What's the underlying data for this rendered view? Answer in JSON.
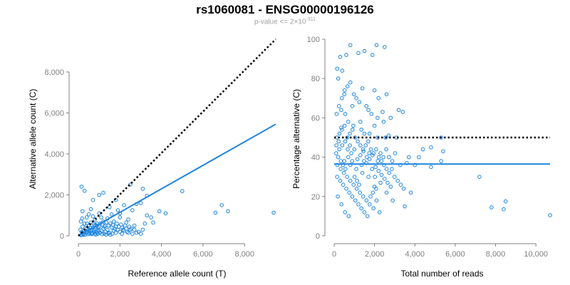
{
  "header": {
    "title": "rs1060081 - ENSG00000196126",
    "subtitle_prefix": "p-value <= 2×10",
    "subtitle_exponent": "-311"
  },
  "colors": {
    "points": "#1f85de",
    "fit": "#1f85de",
    "reference": "#000000",
    "axis": "#808080"
  },
  "chart_data": [
    {
      "type": "scatter",
      "title": "",
      "xlabel": "Reference allele count (T)",
      "ylabel": "Alternative allele count (C)",
      "xlim": [
        0,
        9500
      ],
      "ylim": [
        0,
        9600
      ],
      "xticks": [
        0,
        2000,
        4000,
        6000,
        8000
      ],
      "xtick_labels": [
        "0",
        "2,000",
        "4,000",
        "6,000",
        "8,000"
      ],
      "yticks": [
        0,
        2000,
        4000,
        6000,
        8000
      ],
      "ytick_labels": [
        "0",
        "2,000",
        "4,000",
        "6,000",
        "8,000"
      ],
      "fit_line": {
        "from": [
          0,
          0
        ],
        "to": [
          9500,
          5450
        ],
        "style": "solid"
      },
      "reference_line": {
        "from": [
          0,
          0
        ],
        "to": [
          9500,
          9600
        ],
        "style": "dotted"
      },
      "points": [
        [
          5000,
          2180
        ],
        [
          6600,
          1130
        ],
        [
          6900,
          1500
        ],
        [
          7200,
          1200
        ],
        [
          9400,
          1130
        ],
        [
          2500,
          2500
        ],
        [
          3100,
          2300
        ],
        [
          3300,
          1950
        ],
        [
          150,
          2400
        ],
        [
          300,
          2200
        ],
        [
          1000,
          2000
        ],
        [
          1200,
          2100
        ],
        [
          700,
          1750
        ],
        [
          1800,
          1750
        ],
        [
          2200,
          1500
        ],
        [
          2800,
          1550
        ],
        [
          3000,
          1600
        ],
        [
          2600,
          1250
        ],
        [
          3300,
          1000
        ],
        [
          3200,
          600
        ],
        [
          2700,
          500
        ],
        [
          3900,
          1200
        ],
        [
          4200,
          1100
        ],
        [
          1500,
          1400
        ],
        [
          600,
          1300
        ],
        [
          200,
          1200
        ],
        [
          500,
          1050
        ],
        [
          2000,
          900
        ],
        [
          2400,
          800
        ],
        [
          1100,
          900
        ],
        [
          800,
          800
        ],
        [
          1400,
          850
        ],
        [
          1700,
          700
        ],
        [
          900,
          600
        ],
        [
          1300,
          500
        ],
        [
          2100,
          400
        ],
        [
          1000,
          1100
        ],
        [
          700,
          950
        ],
        [
          1600,
          1050
        ],
        [
          1900,
          1250
        ],
        [
          400,
          900
        ],
        [
          1200,
          700
        ],
        [
          2300,
          650
        ],
        [
          1800,
          450
        ],
        [
          2500,
          300
        ],
        [
          2900,
          200
        ],
        [
          3500,
          900
        ],
        [
          3100,
          300
        ],
        [
          3600,
          650
        ],
        [
          2000,
          1100
        ],
        [
          150,
          50
        ],
        [
          250,
          100
        ],
        [
          350,
          150
        ],
        [
          450,
          80
        ],
        [
          550,
          220
        ],
        [
          650,
          120
        ],
        [
          750,
          300
        ],
        [
          850,
          180
        ],
        [
          950,
          400
        ],
        [
          100,
          300
        ],
        [
          200,
          450
        ],
        [
          300,
          600
        ],
        [
          400,
          350
        ],
        [
          500,
          500
        ],
        [
          600,
          650
        ],
        [
          700,
          400
        ],
        [
          800,
          550
        ],
        [
          900,
          300
        ],
        [
          1000,
          450
        ],
        [
          1100,
          250
        ],
        [
          1200,
          350
        ],
        [
          1300,
          200
        ],
        [
          1400,
          300
        ],
        [
          1500,
          150
        ],
        [
          1600,
          400
        ],
        [
          1700,
          250
        ],
        [
          1800,
          150
        ],
        [
          1900,
          300
        ],
        [
          2000,
          200
        ],
        [
          2100,
          100
        ],
        [
          2200,
          250
        ],
        [
          2300,
          350
        ],
        [
          2400,
          150
        ],
        [
          2600,
          100
        ],
        [
          2700,
          300
        ],
        [
          2800,
          150
        ],
        [
          3000,
          100
        ],
        [
          120,
          700
        ],
        [
          180,
          850
        ],
        [
          220,
          150
        ],
        [
          280,
          250
        ],
        [
          320,
          50
        ],
        [
          380,
          200
        ],
        [
          420,
          600
        ],
        [
          480,
          300
        ],
        [
          520,
          100
        ],
        [
          580,
          400
        ],
        [
          620,
          250
        ],
        [
          680,
          150
        ],
        [
          720,
          600
        ],
        [
          780,
          100
        ],
        [
          820,
          350
        ],
        [
          880,
          500
        ],
        [
          920,
          150
        ],
        [
          980,
          250
        ],
        [
          1050,
          600
        ],
        [
          1150,
          550
        ],
        [
          1250,
          450
        ],
        [
          1350,
          650
        ],
        [
          1450,
          500
        ],
        [
          1550,
          600
        ],
        [
          1650,
          550
        ],
        [
          1750,
          350
        ],
        [
          1850,
          600
        ],
        [
          1950,
          450
        ],
        [
          2050,
          550
        ],
        [
          2150,
          300
        ],
        [
          2250,
          500
        ],
        [
          2350,
          200
        ],
        [
          2450,
          450
        ],
        [
          2550,
          350
        ],
        [
          130,
          30
        ],
        [
          160,
          180
        ],
        [
          240,
          60
        ],
        [
          340,
          380
        ],
        [
          440,
          160
        ],
        [
          540,
          300
        ],
        [
          640,
          80
        ],
        [
          740,
          200
        ],
        [
          840,
          60
        ],
        [
          940,
          100
        ],
        [
          1040,
          150
        ],
        [
          1140,
          80
        ],
        [
          1240,
          100
        ],
        [
          1340,
          60
        ],
        [
          1440,
          120
        ],
        [
          1540,
          60
        ],
        [
          1640,
          100
        ]
      ]
    },
    {
      "type": "scatter",
      "title": "",
      "xlabel": "Total number of reads",
      "ylabel": "Percentage alternative (C)",
      "xlim": [
        0,
        10700
      ],
      "ylim": [
        0,
        100
      ],
      "xticks": [
        0,
        2000,
        4000,
        6000,
        8000,
        10000
      ],
      "xtick_labels": [
        "0",
        "2,000",
        "4,000",
        "6,000",
        "8,000",
        "10,000"
      ],
      "yticks": [
        0,
        20,
        40,
        60,
        80,
        100
      ],
      "ytick_labels": [
        "0",
        "20",
        "40",
        "60",
        "80",
        "100"
      ],
      "fit_line": {
        "from": [
          0,
          36.5
        ],
        "to": [
          10700,
          36.5
        ],
        "style": "solid"
      },
      "reference_line": {
        "from": [
          0,
          50
        ],
        "to": [
          10700,
          50
        ],
        "style": "dotted"
      },
      "points": [
        [
          800,
          97
        ],
        [
          2100,
          97
        ],
        [
          2500,
          96
        ],
        [
          1900,
          92
        ],
        [
          600,
          92
        ],
        [
          300,
          91
        ],
        [
          1200,
          93
        ],
        [
          1500,
          94
        ],
        [
          150,
          85
        ],
        [
          400,
          84
        ],
        [
          800,
          78
        ],
        [
          1400,
          75
        ],
        [
          2000,
          74
        ],
        [
          2200,
          70
        ],
        [
          2600,
          72
        ],
        [
          1100,
          70
        ],
        [
          500,
          72
        ],
        [
          200,
          80
        ],
        [
          900,
          66
        ],
        [
          1700,
          64
        ],
        [
          2400,
          63
        ],
        [
          3200,
          64
        ],
        [
          3400,
          63
        ],
        [
          2800,
          60
        ],
        [
          1300,
          58
        ],
        [
          700,
          58
        ],
        [
          350,
          55
        ],
        [
          2000,
          56
        ],
        [
          1500,
          52
        ],
        [
          2700,
          51
        ],
        [
          3100,
          50
        ],
        [
          5300,
          50
        ],
        [
          4800,
          45
        ],
        [
          5400,
          43
        ],
        [
          4200,
          40
        ],
        [
          4800,
          35
        ],
        [
          5300,
          38
        ],
        [
          7200,
          30
        ],
        [
          7800,
          14.5
        ],
        [
          8500,
          17.5
        ],
        [
          8400,
          13.5
        ],
        [
          10700,
          10.5
        ],
        [
          3600,
          37
        ],
        [
          3800,
          22
        ],
        [
          3500,
          15
        ],
        [
          2900,
          18
        ],
        [
          2600,
          22
        ],
        [
          2300,
          27
        ],
        [
          2000,
          25
        ],
        [
          1700,
          30
        ],
        [
          1400,
          32
        ],
        [
          1100,
          34
        ],
        [
          800,
          36
        ],
        [
          500,
          38
        ],
        [
          200,
          40
        ],
        [
          100,
          42
        ],
        [
          250,
          44
        ],
        [
          400,
          46
        ],
        [
          550,
          48
        ],
        [
          700,
          40
        ],
        [
          850,
          42
        ],
        [
          1000,
          44
        ],
        [
          1150,
          39
        ],
        [
          1300,
          41
        ],
        [
          1450,
          43
        ],
        [
          1600,
          37
        ],
        [
          1750,
          39
        ],
        [
          1900,
          41
        ],
        [
          2050,
          35
        ],
        [
          2200,
          33
        ],
        [
          2350,
          31
        ],
        [
          2500,
          29
        ],
        [
          2650,
          27
        ],
        [
          2800,
          25
        ],
        [
          150,
          30
        ],
        [
          300,
          28
        ],
        [
          450,
          26
        ],
        [
          600,
          24
        ],
        [
          750,
          22
        ],
        [
          900,
          20
        ],
        [
          1050,
          18
        ],
        [
          1200,
          16
        ],
        [
          1350,
          14
        ],
        [
          1500,
          12
        ],
        [
          1650,
          10
        ],
        [
          1800,
          20
        ],
        [
          1950,
          14
        ],
        [
          2100,
          18
        ],
        [
          2250,
          12
        ],
        [
          180,
          20
        ],
        [
          360,
          16
        ],
        [
          540,
          12
        ],
        [
          720,
          10
        ],
        [
          120,
          62
        ],
        [
          240,
          66
        ],
        [
          380,
          70
        ],
        [
          520,
          74
        ],
        [
          660,
          76
        ],
        [
          980,
          72
        ],
        [
          1250,
          68
        ],
        [
          1600,
          66
        ],
        [
          1850,
          62
        ],
        [
          2150,
          60
        ],
        [
          2450,
          58
        ],
        [
          130,
          50
        ],
        [
          260,
          52
        ],
        [
          390,
          54
        ],
        [
          520,
          56
        ],
        [
          650,
          50
        ],
        [
          780,
          52
        ],
        [
          910,
          54
        ],
        [
          1040,
          50
        ],
        [
          1170,
          48
        ],
        [
          1300,
          46
        ],
        [
          1430,
          44
        ],
        [
          1560,
          46
        ],
        [
          1690,
          48
        ],
        [
          1820,
          44
        ],
        [
          1950,
          42
        ],
        [
          2080,
          44
        ],
        [
          2210,
          40
        ],
        [
          2340,
          38
        ],
        [
          2470,
          36
        ],
        [
          2600,
          34
        ],
        [
          2730,
          32
        ],
        [
          2860,
          34
        ],
        [
          2990,
          30
        ],
        [
          3150,
          28
        ],
        [
          3300,
          26
        ],
        [
          3450,
          24
        ],
        [
          160,
          36
        ],
        [
          320,
          34
        ],
        [
          480,
          32
        ],
        [
          640,
          30
        ],
        [
          800,
          28
        ],
        [
          960,
          26
        ],
        [
          1120,
          24
        ],
        [
          1280,
          22
        ],
        [
          1440,
          20
        ],
        [
          1600,
          18
        ],
        [
          1760,
          16
        ],
        [
          1920,
          22
        ],
        [
          2080,
          24
        ],
        [
          110,
          46
        ],
        [
          220,
          48
        ],
        [
          330,
          38
        ],
        [
          440,
          36
        ],
        [
          560,
          34
        ],
        [
          670,
          44
        ],
        [
          780,
          46
        ],
        [
          890,
          38
        ],
        [
          1010,
          30
        ],
        [
          1130,
          28
        ],
        [
          1240,
          26
        ],
        [
          1360,
          36
        ],
        [
          1480,
          38
        ],
        [
          1620,
          40
        ],
        [
          1740,
          42
        ],
        [
          1880,
          34
        ],
        [
          2020,
          30
        ],
        [
          2160,
          38
        ],
        [
          2300,
          42
        ],
        [
          2440,
          40
        ],
        [
          2580,
          44
        ],
        [
          2720,
          40
        ],
        [
          2880,
          38
        ],
        [
          3020,
          42
        ],
        [
          3280,
          36
        ],
        [
          3700,
          40
        ],
        [
          4000,
          36
        ],
        [
          4400,
          44
        ],
        [
          2550,
          50
        ],
        [
          2150,
          50
        ],
        [
          1750,
          52
        ],
        [
          1350,
          54
        ],
        [
          950,
          56
        ],
        [
          550,
          62
        ],
        [
          350,
          64
        ]
      ]
    }
  ]
}
